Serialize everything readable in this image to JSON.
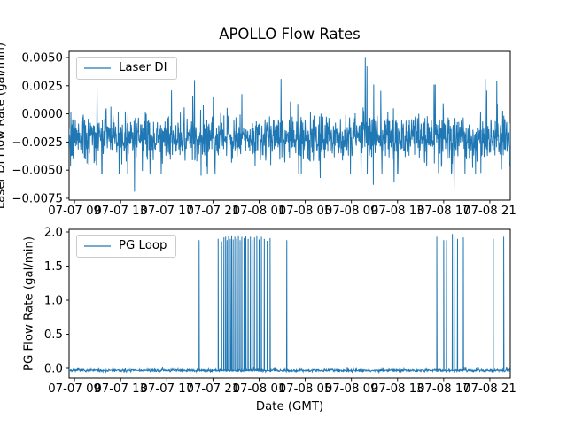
{
  "figure": {
    "title": "APOLLO Flow Rates",
    "xlabel": "Date (GMT)",
    "background": "#ffffff",
    "series_color": "#1f77b4",
    "axis_color": "#000000"
  },
  "chart_data": [
    {
      "type": "line",
      "subplot": "top",
      "series": [
        {
          "name": "Laser DI"
        }
      ],
      "title": "APOLLO Flow Rates",
      "ylabel": "Laser DI Flow Rate (gal/min)",
      "legend": {
        "label": "Laser DI",
        "position": "upper left"
      },
      "grid": false,
      "xlim_hours": [
        8.53,
        46.77
      ],
      "x_ticks_hours": [
        9,
        13,
        17,
        21,
        25,
        29,
        33,
        37,
        41,
        45
      ],
      "x_ticklabels": [
        "07-07 09",
        "07-07 13",
        "07-07 17",
        "07-07 21",
        "07-08 01",
        "07-08 05",
        "07-08 09",
        "07-08 13",
        "07-08 17",
        "07-08 21"
      ],
      "ylim": [
        -0.00766,
        0.00555
      ],
      "y_ticks": [
        0.005,
        0.0025,
        0.0,
        -0.0025,
        -0.005,
        -0.0075
      ],
      "y_ticklabels": [
        "0.0050",
        "0.0025",
        "0.0000",
        "−0.0025",
        "−0.0050",
        "−0.0075"
      ],
      "line_color": "#1f77b4",
      "signal": {
        "kind": "noise",
        "n": 1500,
        "seed": 42,
        "mean": -0.0021,
        "sigma": 0.00095,
        "spike_prob": 0.045,
        "spike_min": 0.0018,
        "spike_max": 0.0044,
        "clamp": [
          -0.0053,
          0.0026
        ]
      },
      "extremes": [
        {
          "t": 14.2,
          "v": -0.0069
        },
        {
          "t": 19.4,
          "v": 0.003
        },
        {
          "t": 19.97,
          "v": -0.0055
        },
        {
          "t": 26.9,
          "v": 0.0031
        },
        {
          "t": 30.3,
          "v": -0.0057
        },
        {
          "t": 34.2,
          "v": 0.00505
        },
        {
          "t": 34.35,
          "v": 0.0042
        },
        {
          "t": 34.9,
          "v": -0.0063
        },
        {
          "t": 36.7,
          "v": -0.0061
        },
        {
          "t": 41.9,
          "v": -0.0066
        },
        {
          "t": 44.6,
          "v": 0.0031
        },
        {
          "t": 45.6,
          "v": 0.0029
        }
      ]
    },
    {
      "type": "line",
      "subplot": "bottom",
      "series": [
        {
          "name": "PG Loop"
        }
      ],
      "ylabel": "PG Flow Rate (gal/min)",
      "xlabel": "Date (GMT)",
      "legend": {
        "label": "PG Loop",
        "position": "upper left"
      },
      "grid": false,
      "xlim_hours": [
        8.53,
        46.77
      ],
      "x_ticks_hours": [
        9,
        13,
        17,
        21,
        25,
        29,
        33,
        37,
        41,
        45
      ],
      "x_ticklabels": [
        "07-07 09",
        "07-07 13",
        "07-07 17",
        "07-07 21",
        "07-08 01",
        "07-08 05",
        "07-08 09",
        "07-08 13",
        "07-08 17",
        "07-08 21"
      ],
      "ylim": [
        -0.143,
        2.039
      ],
      "y_ticks": [
        0.0,
        0.5,
        1.0,
        1.5,
        2.0
      ],
      "y_ticklabels": [
        "0.0",
        "0.5",
        "1.0",
        "1.5",
        "2.0"
      ],
      "line_color": "#1f77b4",
      "signal": {
        "kind": "baseline",
        "n": 1200,
        "seed": 7,
        "mean": -0.03,
        "sigma": 0.012
      },
      "spikes": [
        {
          "t": 19.8,
          "h": 1.88
        },
        {
          "t": 21.45,
          "h": 1.9
        },
        {
          "t": 21.75,
          "h": 1.86
        },
        {
          "t": 21.95,
          "h": 1.92
        },
        {
          "t": 22.1,
          "h": 1.93
        },
        {
          "t": 22.22,
          "h": 1.88
        },
        {
          "t": 22.35,
          "h": 1.94
        },
        {
          "t": 22.5,
          "h": 1.9
        },
        {
          "t": 22.62,
          "h": 1.95
        },
        {
          "t": 22.75,
          "h": 1.89
        },
        {
          "t": 22.9,
          "h": 1.93
        },
        {
          "t": 23.05,
          "h": 1.9
        },
        {
          "t": 23.2,
          "h": 1.95
        },
        {
          "t": 23.35,
          "h": 1.88
        },
        {
          "t": 23.5,
          "h": 1.93
        },
        {
          "t": 23.7,
          "h": 1.91
        },
        {
          "t": 23.85,
          "h": 1.94
        },
        {
          "t": 24.05,
          "h": 1.9
        },
        {
          "t": 24.25,
          "h": 1.93
        },
        {
          "t": 24.4,
          "h": 1.88
        },
        {
          "t": 24.6,
          "h": 1.92
        },
        {
          "t": 24.8,
          "h": 1.95
        },
        {
          "t": 25.0,
          "h": 1.89
        },
        {
          "t": 25.2,
          "h": 1.93
        },
        {
          "t": 25.45,
          "h": 1.9
        },
        {
          "t": 25.7,
          "h": 1.87
        },
        {
          "t": 25.95,
          "h": 1.91
        },
        {
          "t": 27.4,
          "h": 1.88
        },
        {
          "t": 40.4,
          "h": 1.93
        },
        {
          "t": 41.0,
          "h": 1.88
        },
        {
          "t": 41.25,
          "h": 1.88
        },
        {
          "t": 41.75,
          "h": 1.97
        },
        {
          "t": 41.9,
          "h": 1.95
        },
        {
          "t": 42.2,
          "h": 1.9
        },
        {
          "t": 42.7,
          "h": 1.92
        },
        {
          "t": 45.3,
          "h": 1.9
        },
        {
          "t": 46.2,
          "h": 1.93
        }
      ]
    }
  ]
}
